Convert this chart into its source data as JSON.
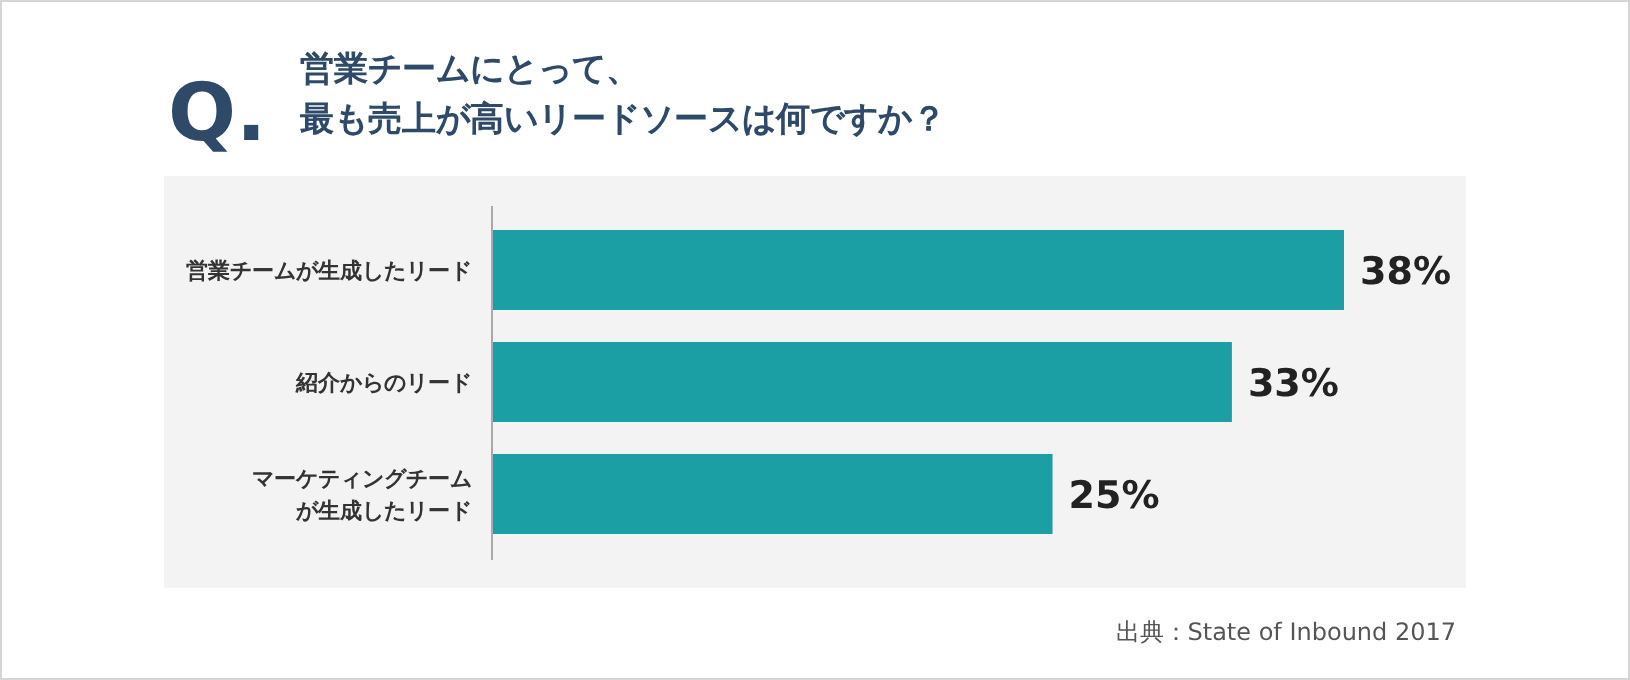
{
  "chart_data": {
    "type": "bar",
    "orientation": "horizontal",
    "title": "Q.",
    "subtitle": "営業チームにとって、最も売上が高いリードソースは何ですか？",
    "categories": [
      "営業チームが生成したリード",
      "紹介からのリード",
      "マーケティングチームが生成したリード"
    ],
    "values": [
      38,
      33,
      25
    ],
    "color": "#1b9fa5",
    "value_labels": [
      "38%",
      "33%",
      "25%"
    ],
    "annotations": [
      "出典：State of Inbound 2017"
    ]
  }
}
